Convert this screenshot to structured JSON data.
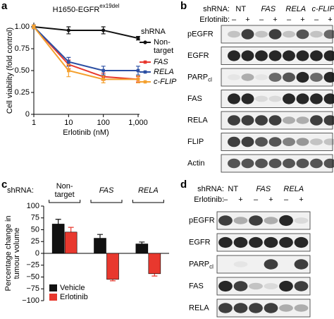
{
  "panel_labels": [
    "a",
    "b",
    "c",
    "d"
  ],
  "chart_data": [
    {
      "type": "line",
      "title": "H1650-EGFR",
      "title_superscript": "ex19del",
      "x_label": "Erlotinib (nM)",
      "y_label": "Cell viability (fold control)",
      "x": [
        1,
        10,
        100,
        1000
      ],
      "log_x": true,
      "xlim": [
        1,
        1000
      ],
      "xticks": [
        1,
        10,
        100,
        {
          "value": 1000,
          "label": "1,000"
        }
      ],
      "ylim": [
        0,
        1
      ],
      "yticks": [
        0,
        0.25,
        {
          "value": 0.5,
          "label": "0.50"
        },
        0.75,
        {
          "value": 1,
          "label": "1.00"
        }
      ],
      "legend_title": "shRNA",
      "series": [
        {
          "name": "Non-target",
          "color": "#111111",
          "values": [
            1,
            0.96,
            0.96,
            0.87
          ],
          "errors": [
            0.02,
            0.04,
            0.04,
            0.02
          ]
        },
        {
          "name": "FAS",
          "color": "#e8382e",
          "values": [
            1,
            0.57,
            0.43,
            0.4
          ],
          "errors": [
            0.02,
            0.05,
            0.04,
            0.03
          ]
        },
        {
          "name": "RELA",
          "color": "#2c4fa3",
          "values": [
            1,
            0.6,
            0.5,
            0.5
          ],
          "errors": [
            0.02,
            0.05,
            0.05,
            0.05
          ]
        },
        {
          "name": "c-FLIP",
          "color": "#f4a12f",
          "values": [
            1,
            0.5,
            0.4,
            0.4
          ],
          "errors": [
            0.02,
            0.07,
            0.04,
            0.04
          ]
        }
      ]
    },
    {
      "type": "bar",
      "category_title": "shRNA:",
      "y_label": [
        "Percentage change in",
        "tumour volume"
      ],
      "categories": [
        "Non-target",
        "FAS",
        "RELA"
      ],
      "ylim": [
        -100,
        100
      ],
      "yticks": [
        {
          "value": -100,
          "label": "−100"
        },
        {
          "value": -75,
          "label": "−75"
        },
        {
          "value": -50,
          "label": "−50"
        },
        {
          "value": -25,
          "label": "−25"
        },
        0,
        25,
        50,
        75,
        100
      ],
      "legend": "lower left",
      "series": [
        {
          "name": "Vehicle",
          "color": "#111111",
          "values": [
            62,
            32,
            20
          ],
          "errors": [
            10,
            8,
            4
          ]
        },
        {
          "name": "Erlotinib",
          "color": "#e8382e",
          "values": [
            45,
            -55,
            -43
          ],
          "errors": [
            10,
            3,
            5
          ]
        }
      ]
    }
  ],
  "blots": [
    {
      "header": "shRNA:",
      "treatment": "Erlotinib:",
      "groups": [
        "NT",
        "FAS",
        "RELA",
        "c-FLIP"
      ],
      "signs": [
        "–",
        "+",
        "–",
        "+",
        "–",
        "+",
        "–",
        "+"
      ],
      "rows": [
        {
          "label": "pEGFR"
        },
        {
          "label": "EGFR"
        },
        {
          "label": "PARP",
          "sub": "cl"
        },
        {
          "label": "FAS"
        },
        {
          "label": "RELA"
        },
        {
          "label": "FLIP"
        },
        {
          "label": "Actin"
        }
      ]
    },
    {
      "header": "shRNA:",
      "treatment": "Erlotinib:",
      "groups": [
        "NT",
        "FAS",
        "RELA"
      ],
      "signs": [
        "–",
        "+",
        "–",
        "+",
        "–",
        "+"
      ],
      "rows": [
        {
          "label": "pEGFR"
        },
        {
          "label": "EGFR"
        },
        {
          "label": "PARP",
          "sub": "cl"
        },
        {
          "label": "FAS"
        },
        {
          "label": "RELA"
        }
      ]
    }
  ]
}
